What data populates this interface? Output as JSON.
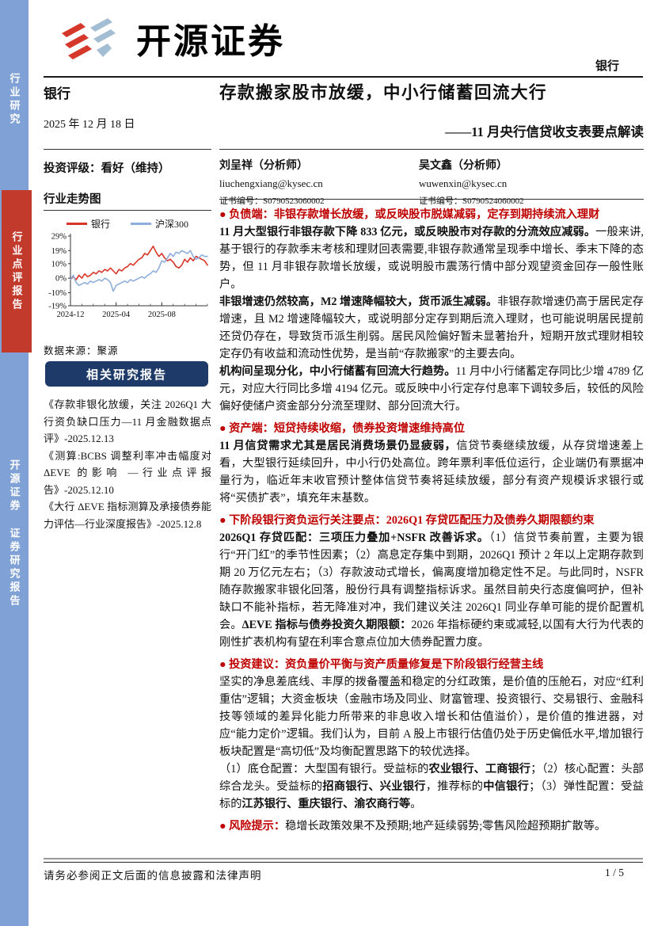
{
  "sidebar": {
    "top_label": "行业研究",
    "middle_label": "行业点评报告",
    "bottom_label_1": "开源证券",
    "bottom_label_2": "证券研究报告"
  },
  "header": {
    "brand": "开源证券",
    "industry_tag": "银行"
  },
  "left": {
    "industry": "银行",
    "date": "2025 年 12 月 18 日",
    "rating": "投资评级：看好（维持）",
    "chart_heading": "行业走势图",
    "source": "数据来源：聚源"
  },
  "related": {
    "header": "相关研究报告",
    "items": [
      "《存款非银化放缓，关注 2026Q1 大行资负缺口压力—11 月金融数据点评》-2025.12.13",
      "《测算:BCBS 调整利率冲击幅度对ΔEVE 的影响 —行业点评报告》-2025.12.10",
      "《大行 ΔEVE 指标测算及承接债券能力评估—行业深度报告》-2025.12.8"
    ]
  },
  "doc": {
    "title": "存款搬家股市放缓，中小行储蓄回流大行",
    "subtitle": "——11 月央行信贷收支表要点解读"
  },
  "analysts": [
    {
      "name": "刘呈祥（分析师）",
      "email": "liuchengxiang@kysec.cn",
      "cert_label": "证书编号：",
      "cert_no": "S0790523060002"
    },
    {
      "name": "吴文鑫（分析师）",
      "email": "wuwenxin@kysec.cn",
      "cert_label": "证书编号：",
      "cert_no": "S0790524060002"
    }
  ],
  "sections": [
    {
      "heading": "● 负债端：非银存款增长放缓，或反映股市脱媒减弱，定存到期持续流入理财",
      "paragraphs": [
        [
          {
            "t": "11 月大型银行非银存款下降 833 亿元，或反映股市对存款的分流效应减弱。",
            "s": "b"
          },
          {
            "t": "一般来讲,基于银行的存款季末考核和理财回表需要,非银存款通常呈现季中增长、季末下降的态势，但 11 月非银存款增长放缓，或说明股市震荡行情中部分观望资金回存一般性账户。"
          }
        ],
        [
          {
            "t": "非银增速仍然较高，M2 增速降幅较大，货币派生减弱。",
            "s": "b"
          },
          {
            "t": "非银存款增速仍高于居民定存增速，且 M2 增速降幅较大，或说明部分定存到期后流入理财，也可能说明居民提前还贷仍存在，导致货币派生削弱。居民风险偏好暂未显著抬升，短期开放式理财相较定存仍有收益和流动性优势，是当前“存款搬家”的主要去向。"
          }
        ],
        [
          {
            "t": "机构间呈现分化，中小行储蓄有回流大行趋势。",
            "s": "b"
          },
          {
            "t": "11 月中小行储蓄定存同比少增 4789 亿元，对应大行同比多增 4194 亿元。或反映中小行定存付息率下调较多后，较低的风险偏好使储户资金部分分流至理财、部分回流大行。"
          }
        ]
      ]
    },
    {
      "heading": "● 资产端：短贷持续收缩，债券投资增速维持高位",
      "paragraphs": [
        [
          {
            "t": "11 月信贷需求尤其是居民消费场景仍显疲弱，",
            "s": "b"
          },
          {
            "t": "信贷节奏继续放缓，从存贷增速差上看，大型银行延续回升，中小行仍处高位。跨年票利率低位运行，企业端仍有票据冲量行为，临近年末收官预计整体信贷节奏将延续放缓，部分有资产规模诉求银行或将“买债扩表”，填充年末基数。"
          }
        ]
      ]
    },
    {
      "heading": "● 下阶段银行资负运行关注要点：2026Q1 存贷匹配压力及债券久期限额约束",
      "paragraphs": [
        [
          {
            "t": "2026Q1 存贷匹配：三项压力叠加+NSFR 改善诉求。",
            "s": "b"
          },
          {
            "t": "（1）信贷节奏前置，主要为银行“开门红”的季节性因素；（2）高息定存集中到期，2026Q1 预计 2 年以上定期存款到期 20 万亿元左右；（3）存款波动式增长，偏离度增加稳定性不足。与此同时，NSFR 随存款搬家非银化回落，股份行具有调整指标诉求。虽然目前央行态度偏呵护，但补缺口不能补指标，若无降准对冲，我们建议关注 2026Q1 同业存单可能的提价配置机会。"
          },
          {
            "t": "ΔEVE 指标与债券投资久期限额：",
            "s": "b"
          },
          {
            "t": "2026 年指标硬约束或减轻,以国有大行为代表的刚性扩表机构有望在利率合意点位加大债券配置力度。"
          }
        ]
      ]
    },
    {
      "heading": "● 投资建议：资负量价平衡与资产质量修复是下阶段银行经营主线",
      "paragraphs": [
        [
          {
            "t": "坚实的净息差底线、丰厚的拨备覆盖和稳定的分红政策，是价值的压舱石，对应“红利重估”逻辑；大资金板块（金融市场及同业、财富管理、投资银行、交易银行、金融科技等领域的差异化能力所带来的非息收入增长和估值溢价），是价值的推进器，对应“能力定价”逻辑。我们认为，目前 A 股上市银行估值仍处于历史偏低水平,增加银行板块配置是“高切低”及均衡配置思路下的较优选择。"
          }
        ],
        [
          {
            "t": "（1）底仓配置：大型国有银行。受益标的"
          },
          {
            "t": "农业银行、工商银行",
            "s": "b"
          },
          {
            "t": "；（2）核心配置：头部综合龙头。受益标的"
          },
          {
            "t": "招商银行、兴业银行",
            "s": "b"
          },
          {
            "t": "，推荐标的"
          },
          {
            "t": "中信银行",
            "s": "b"
          },
          {
            "t": "；（3）弹性配置：受益标的"
          },
          {
            "t": "江苏银行、重庆银行、渝农商行等",
            "s": "b"
          },
          {
            "t": "。"
          }
        ]
      ]
    },
    {
      "heading": null,
      "paragraphs": [
        [
          {
            "t": "● 风险提示：",
            "s": "rb"
          },
          {
            "t": "稳增长政策效果不及预期;地产延续弱势;零售风险超预期扩散等。"
          }
        ]
      ]
    }
  ],
  "footer": {
    "disclaimer": "请务必参阅正文后面的信息披露和法律声明",
    "page": "1 / 5"
  },
  "chart_data": {
    "type": "line",
    "title": "行业走势图",
    "source": "数据来源：聚源",
    "grid": false,
    "legend_position": "top",
    "ylim": [
      -19,
      29
    ],
    "y_ticks": [
      {
        "label": "29%",
        "v": 29
      },
      {
        "label": "19%",
        "v": 19
      },
      {
        "label": "10%",
        "v": 10
      },
      {
        "label": "0%",
        "v": 0
      },
      {
        "label": "-10%",
        "v": -10
      },
      {
        "label": "-19%",
        "v": -19
      }
    ],
    "x_ticks": [
      {
        "label": "2024-12",
        "x": 0
      },
      {
        "label": "2025-04",
        "x": 16
      },
      {
        "label": "2025-08",
        "x": 32
      }
    ],
    "x_domain": [
      0,
      48
    ],
    "x_minor_tick_step": 4,
    "series": [
      {
        "name": "银行",
        "color": "#d93428",
        "points": [
          [
            0,
            -1
          ],
          [
            1,
            1
          ],
          [
            2,
            -1
          ],
          [
            3,
            2
          ],
          [
            4,
            0
          ],
          [
            5,
            3
          ],
          [
            6,
            1
          ],
          [
            7,
            2
          ],
          [
            8,
            4
          ],
          [
            9,
            3
          ],
          [
            10,
            5
          ],
          [
            11,
            4
          ],
          [
            12,
            6
          ],
          [
            13,
            5
          ],
          [
            14,
            7
          ],
          [
            15,
            5
          ],
          [
            16,
            3
          ],
          [
            17,
            6
          ],
          [
            18,
            5
          ],
          [
            19,
            7
          ],
          [
            20,
            8
          ],
          [
            21,
            10
          ],
          [
            22,
            9
          ],
          [
            23,
            11
          ],
          [
            24,
            13
          ],
          [
            25,
            14
          ],
          [
            26,
            17
          ],
          [
            27,
            16
          ],
          [
            28,
            19
          ],
          [
            29,
            22
          ],
          [
            30,
            18
          ],
          [
            31,
            15
          ],
          [
            32,
            17
          ],
          [
            33,
            14
          ],
          [
            34,
            12
          ],
          [
            35,
            13
          ],
          [
            36,
            11
          ],
          [
            37,
            8
          ],
          [
            38,
            7
          ],
          [
            39,
            9
          ],
          [
            40,
            13
          ],
          [
            41,
            11
          ],
          [
            42,
            14
          ],
          [
            43,
            12
          ],
          [
            44,
            15
          ],
          [
            45,
            14
          ],
          [
            46,
            13
          ],
          [
            47,
            12
          ],
          [
            48,
            9
          ]
        ]
      },
      {
        "name": "沪深300",
        "color": "#8faedc",
        "points": [
          [
            0,
            -1
          ],
          [
            1,
            2
          ],
          [
            2,
            -3
          ],
          [
            3,
            -5
          ],
          [
            4,
            -4
          ],
          [
            5,
            -3
          ],
          [
            6,
            -4
          ],
          [
            7,
            -2
          ],
          [
            8,
            -3
          ],
          [
            9,
            -2
          ],
          [
            10,
            -1
          ],
          [
            11,
            -2
          ],
          [
            12,
            0
          ],
          [
            13,
            -1
          ],
          [
            14,
            -3
          ],
          [
            15,
            -9
          ],
          [
            16,
            -5
          ],
          [
            17,
            -4
          ],
          [
            18,
            -3
          ],
          [
            19,
            -2
          ],
          [
            20,
            -3
          ],
          [
            21,
            -1
          ],
          [
            22,
            -2
          ],
          [
            23,
            -1
          ],
          [
            24,
            0
          ],
          [
            25,
            1
          ],
          [
            26,
            0
          ],
          [
            27,
            2
          ],
          [
            28,
            3
          ],
          [
            29,
            5
          ],
          [
            30,
            4
          ],
          [
            31,
            7
          ],
          [
            32,
            12
          ],
          [
            33,
            11
          ],
          [
            34,
            14
          ],
          [
            35,
            17
          ],
          [
            36,
            15
          ],
          [
            37,
            18
          ],
          [
            38,
            17
          ],
          [
            39,
            19
          ],
          [
            40,
            18
          ],
          [
            41,
            17
          ],
          [
            42,
            19
          ],
          [
            43,
            15
          ],
          [
            44,
            13
          ],
          [
            45,
            14
          ],
          [
            46,
            16
          ],
          [
            47,
            15
          ],
          [
            48,
            15
          ]
        ]
      }
    ]
  }
}
